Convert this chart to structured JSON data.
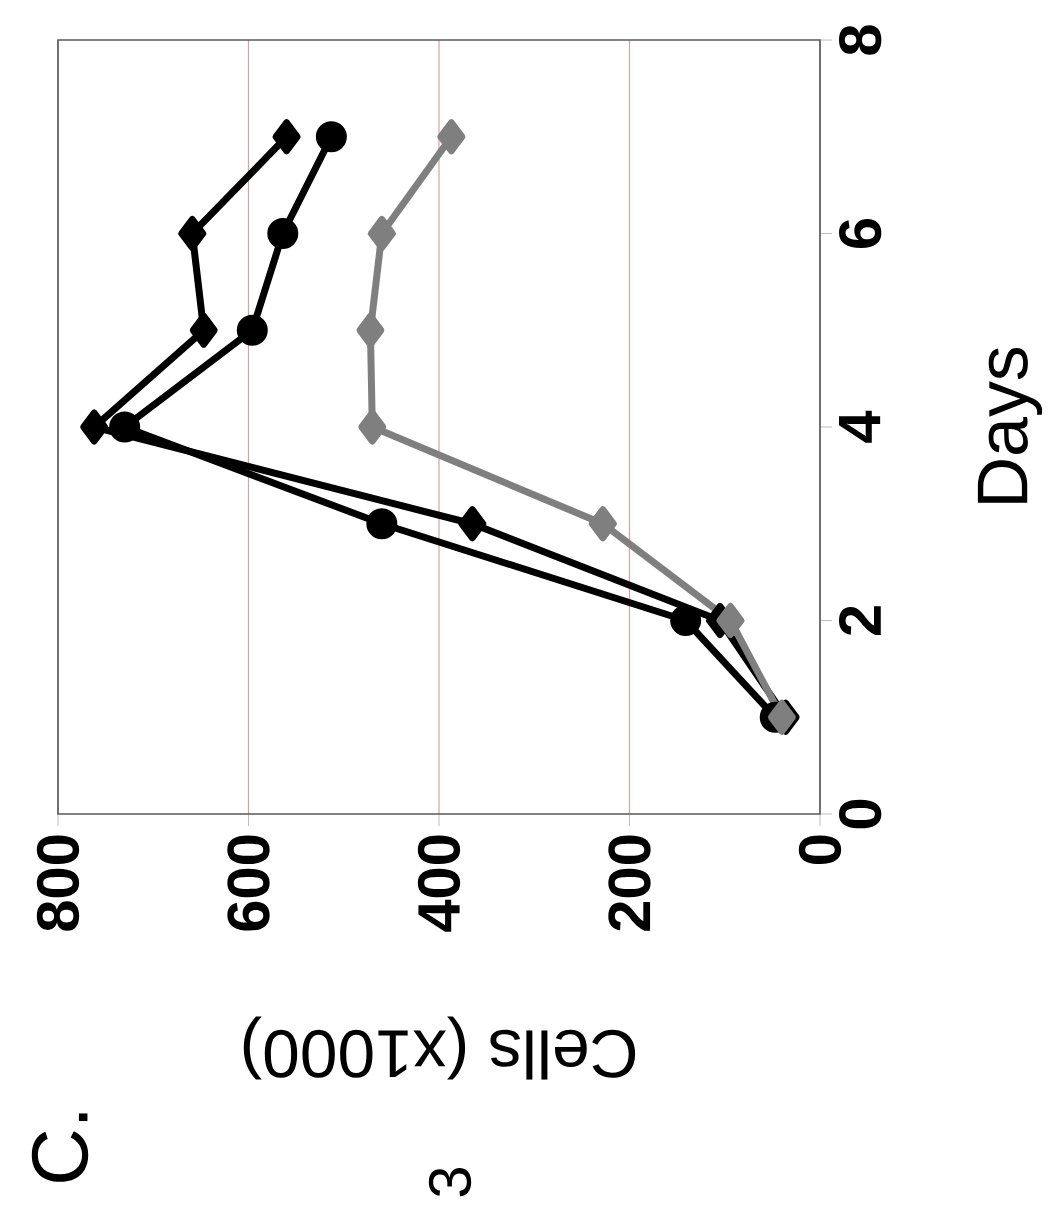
{
  "chart_data": {
    "type": "line",
    "title": "C.",
    "xlabel": "Cells (x1000)",
    "ylabel": "Days",
    "annotations": [
      "3"
    ],
    "xlim": [
      800,
      0
    ],
    "xticks": [
      800,
      600,
      400,
      200,
      0
    ],
    "ylim": [
      0,
      8
    ],
    "yticks": [
      0,
      2,
      4,
      6,
      8
    ],
    "grid": "x",
    "series": [
      {
        "color": "#000000",
        "marker": "diamond",
        "x": [
          36,
          105,
          365,
          762,
          647,
          659,
          560
        ],
        "values": [
          1,
          2,
          3,
          4,
          5,
          6,
          7
        ]
      },
      {
        "color": "#000000",
        "marker": "circle",
        "x": [
          47,
          141,
          460,
          730,
          596,
          564,
          513
        ],
        "values": [
          1,
          2,
          3,
          4,
          5,
          6,
          7
        ]
      },
      {
        "color": "#7f7f7f",
        "marker": "diamond",
        "x": [
          40,
          94,
          228,
          470,
          472,
          460,
          387
        ],
        "values": [
          1,
          2,
          3,
          4,
          5,
          6,
          7
        ]
      }
    ]
  }
}
